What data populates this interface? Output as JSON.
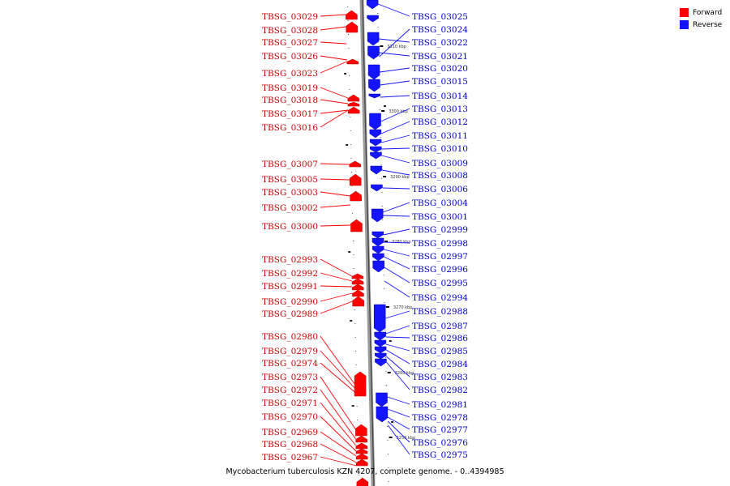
{
  "legend": {
    "forward": {
      "label": "Forward",
      "color": "#ff0000"
    },
    "reverse": {
      "label": "Reverse",
      "color": "#1414ff"
    }
  },
  "caption": "Mycobacterium tuberculosis KZN 4207, complete genome. - 0..4394985",
  "ticks": [
    "3310 kbp",
    "3300 kbp",
    "3290 kbp",
    "3280 kbp",
    "3270 kbp",
    "3260 kbp",
    "3250 kbp"
  ],
  "forward_genes": [
    "TBSG_03029",
    "TBSG_03028",
    "TBSG_03027",
    "TBSG_03026",
    "TBSG_03023",
    "TBSG_03019",
    "TBSG_03018",
    "TBSG_03017",
    "TBSG_03016",
    "TBSG_03007",
    "TBSG_03005",
    "TBSG_03003",
    "TBSG_03002",
    "TBSG_03000",
    "TBSG_02993",
    "TBSG_02992",
    "TBSG_02991",
    "TBSG_02990",
    "TBSG_02989",
    "TBSG_02980",
    "TBSG_02979",
    "TBSG_02974",
    "TBSG_02973",
    "TBSG_02972",
    "TBSG_02971",
    "TBSG_02970",
    "TBSG_02969",
    "TBSG_02968",
    "TBSG_02967"
  ],
  "reverse_genes": [
    "TBSG_03025",
    "TBSG_03024",
    "TBSG_03022",
    "TBSG_03021",
    "TBSG_03020",
    "TBSG_03015",
    "TBSG_03014",
    "TBSG_03013",
    "TBSG_03012",
    "TBSG_03011",
    "TBSG_03010",
    "TBSG_03009",
    "TBSG_03008",
    "TBSG_03006",
    "TBSG_03004",
    "TBSG_03001",
    "TBSG_02999",
    "TBSG_02998",
    "TBSG_02997",
    "TBSG_02996",
    "TBSG_02995",
    "TBSG_02994",
    "TBSG_02988",
    "TBSG_02987",
    "TBSG_02986",
    "TBSG_02985",
    "TBSG_02984",
    "TBSG_02983",
    "TBSG_02982",
    "TBSG_02981",
    "TBSG_02978",
    "TBSG_02977",
    "TBSG_02976",
    "TBSG_02975"
  ]
}
